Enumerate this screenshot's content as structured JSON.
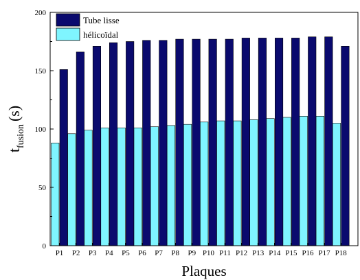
{
  "chart_data": {
    "type": "bar",
    "categories": [
      "P1",
      "P2",
      "P3",
      "P4",
      "P5",
      "P6",
      "P7",
      "P8",
      "P9",
      "P10",
      "P11",
      "P12",
      "P13",
      "P14",
      "P15",
      "P16",
      "P17",
      "P18"
    ],
    "series": [
      {
        "name": "Tube lisse",
        "color": "#0a0a6e",
        "values": [
          151,
          166,
          171,
          174,
          175,
          176,
          176,
          177,
          177,
          177,
          177,
          178,
          178,
          178,
          178,
          179,
          179,
          171
        ]
      },
      {
        "name": "hélicoïdal",
        "color": "#7ff5ff",
        "values": [
          88,
          96,
          99,
          101,
          101,
          101,
          102,
          103,
          104,
          106,
          107,
          107,
          108,
          109,
          110,
          111,
          111,
          105
        ]
      }
    ],
    "xlabel": "Plaques",
    "ylabel_main": "t",
    "ylabel_sub": "fusion",
    "ylabel_unit": "(s)",
    "ylim": [
      0,
      200
    ],
    "yticks": [
      0,
      50,
      100,
      150,
      200
    ],
    "legend_position": "top-left",
    "grid": false
  }
}
